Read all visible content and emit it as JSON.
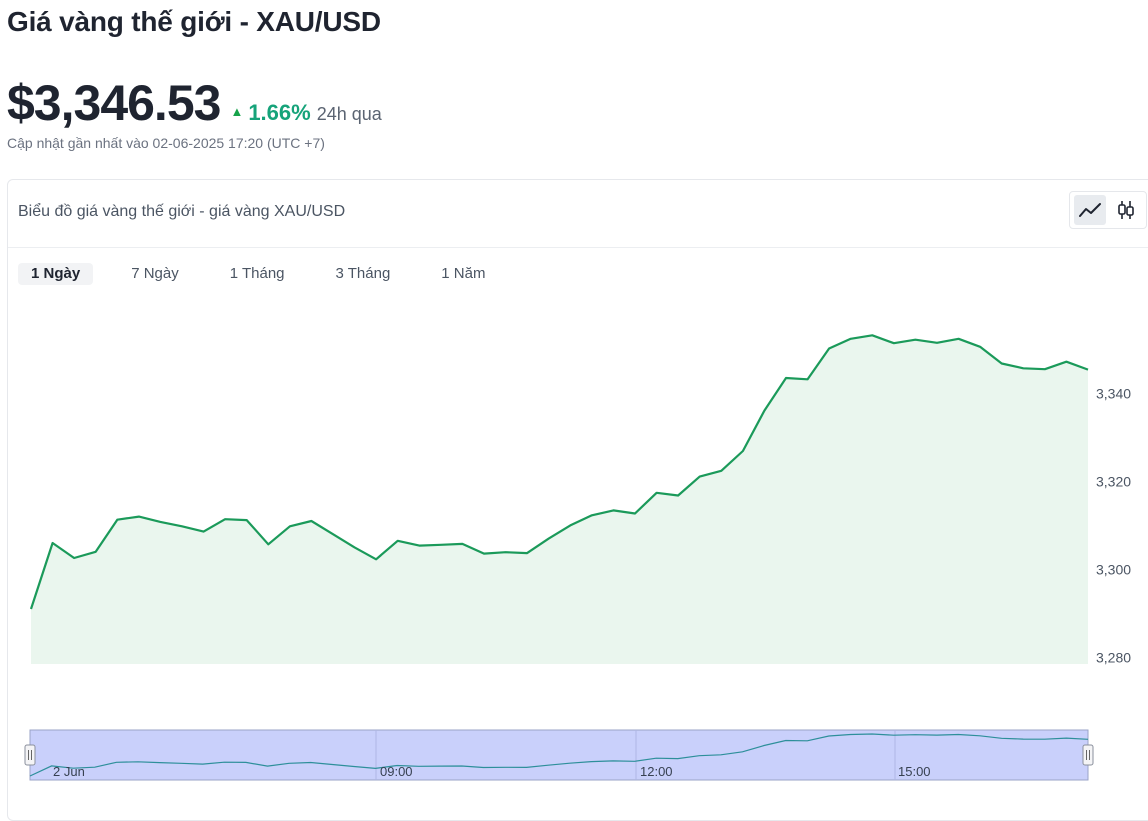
{
  "header": {
    "title": "Giá vàng thế giới - XAU/USD",
    "price": "$3,346.53",
    "change_pct": "1.66%",
    "change_period": "24h qua",
    "updated": "Cập nhật gần nhất vào 02-06-2025 17:20 (UTC +7)"
  },
  "card": {
    "title": "Biểu đồ giá vàng thế giới - giá vàng XAU/USD",
    "chart_types": [
      {
        "icon": "line-chart-icon",
        "active": true
      },
      {
        "icon": "candlestick-icon",
        "active": false
      }
    ]
  },
  "range_tabs": [
    {
      "label": "1 Ngày",
      "active": true
    },
    {
      "label": "7 Ngày",
      "active": false
    },
    {
      "label": "1 Tháng",
      "active": false
    },
    {
      "label": "3 Tháng",
      "active": false
    },
    {
      "label": "1 Năm",
      "active": false
    }
  ],
  "colors": {
    "up": "#16a37a",
    "line": "#1b9a5a",
    "area": "#eaf6ee",
    "navigator_fill": "#c9d0fb",
    "navigator_line": "#2d8f9a"
  },
  "chart_data": {
    "type": "area",
    "title": "",
    "xlabel": "",
    "ylabel": "",
    "ylim": [
      3280,
      3346
    ],
    "y_ticks": [
      3280,
      3300,
      3320,
      3340
    ],
    "y_tick_labels": [
      "3,280",
      "3,300",
      "3,320",
      "3,340"
    ],
    "series": [
      {
        "values": [
          3291,
          3306,
          3302.6,
          3304,
          3311.3,
          3312,
          3310.8,
          3309.8,
          3308.6,
          3311.4,
          3311.2,
          3305.7,
          3309.8,
          3311,
          3308,
          3305,
          3302.3,
          3306.5,
          3305.4,
          3305.6,
          3305.8,
          3303.6,
          3303.9,
          3303.7,
          3307,
          3310,
          3312.3,
          3313.4,
          3312.7,
          3317.4,
          3316.8,
          3321.1,
          3322.4,
          3326.9,
          3336.1,
          3343.5,
          3343.2,
          3350.2,
          3352.4,
          3353.2,
          3351.4,
          3352.2,
          3351.5,
          3352.4,
          3350.6,
          3346.8,
          3345.7,
          3345.5,
          3347.2,
          3345.4
        ]
      }
    ],
    "navigator_labels": [
      "2 Jun",
      "09:00",
      "12:00",
      "15:00"
    ]
  }
}
